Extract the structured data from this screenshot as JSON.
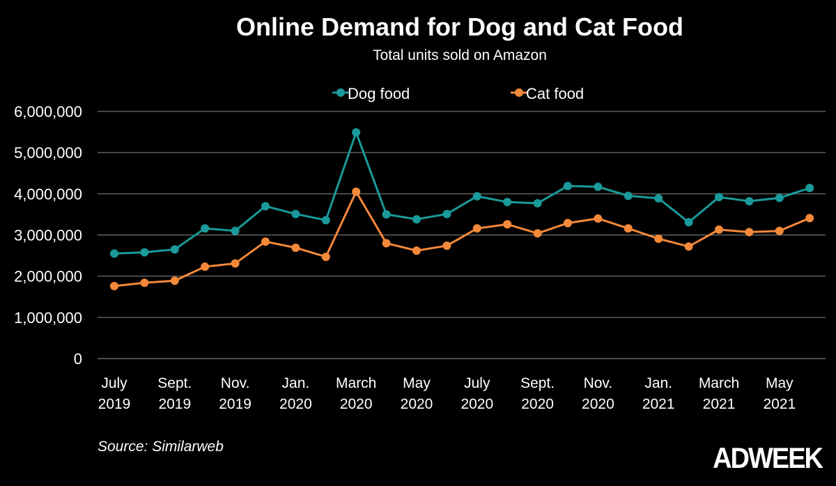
{
  "chart_data": {
    "type": "line",
    "title": "Online Demand for Dog and Cat Food",
    "subtitle": "Total units sold on Amazon",
    "source": "Source: Similarweb",
    "logo": "ADWEEK",
    "x": [
      "Jul 2019",
      "Aug 2019",
      "Sep 2019",
      "Oct 2019",
      "Nov 2019",
      "Dec 2019",
      "Jan 2020",
      "Feb 2020",
      "Mar 2020",
      "Apr 2020",
      "May 2020",
      "Jun 2020",
      "Jul 2020",
      "Aug 2020",
      "Sep 2020",
      "Oct 2020",
      "Nov 2020",
      "Dec 2020",
      "Jan 2021",
      "Feb 2021",
      "Mar 2021",
      "Apr 2021",
      "May 2021",
      "Jun 2021"
    ],
    "x_tick_labels": [
      [
        "July",
        "2019"
      ],
      [
        "Sept.",
        "2019"
      ],
      [
        "Nov.",
        "2019"
      ],
      [
        "Jan.",
        "2020"
      ],
      [
        "March",
        "2020"
      ],
      [
        "May",
        "2020"
      ],
      [
        "July",
        "2020"
      ],
      [
        "Sept.",
        "2020"
      ],
      [
        "Nov.",
        "2020"
      ],
      [
        "Jan.",
        "2021"
      ],
      [
        "March",
        "2021"
      ],
      [
        "May",
        "2021"
      ]
    ],
    "y_tick_labels": [
      "0",
      "1,000,000",
      "2,000,000",
      "3,000,000",
      "4,000,000",
      "5,000,000",
      "6,000,000"
    ],
    "ylim": [
      0,
      6000000
    ],
    "grid": true,
    "legend_placement": "top-center",
    "series": [
      {
        "name": "Dog food",
        "color": "#1a9a9a",
        "values": [
          2550000,
          2580000,
          2650000,
          3160000,
          3100000,
          3700000,
          3510000,
          3360000,
          5490000,
          3500000,
          3380000,
          3510000,
          3940000,
          3800000,
          3770000,
          4190000,
          4170000,
          3950000,
          3890000,
          3310000,
          3920000,
          3820000,
          3900000,
          4140000
        ]
      },
      {
        "name": "Cat food",
        "color": "#f4893a",
        "values": [
          1760000,
          1840000,
          1890000,
          2230000,
          2310000,
          2840000,
          2690000,
          2470000,
          4050000,
          2800000,
          2620000,
          2740000,
          3160000,
          3260000,
          3040000,
          3290000,
          3400000,
          3160000,
          2910000,
          2720000,
          3130000,
          3070000,
          3100000,
          3410000
        ]
      }
    ]
  }
}
